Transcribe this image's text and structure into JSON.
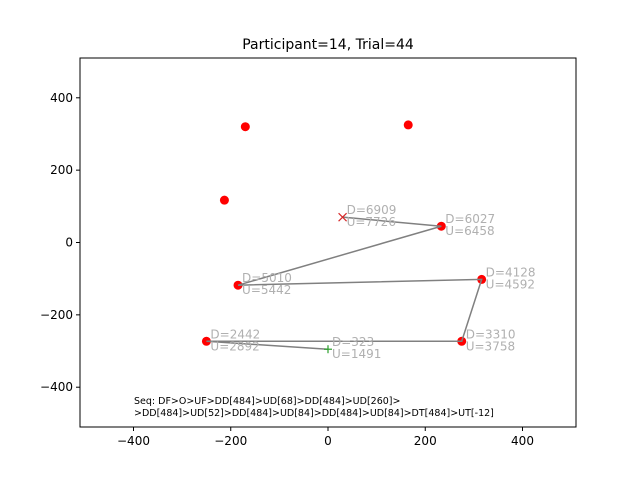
{
  "chart_data": {
    "type": "scatter",
    "title": "Participant=14, Trial=44",
    "xlabel": "",
    "ylabel": "",
    "xlim": [
      -510,
      510
    ],
    "ylim": [
      -510,
      510
    ],
    "xticks": [
      -400,
      -200,
      0,
      200,
      400
    ],
    "yticks": [
      -400,
      -200,
      0,
      200,
      400
    ],
    "xtick_labels": [
      "−400",
      "−200",
      "0",
      "200",
      "400"
    ],
    "ytick_labels": [
      "−400",
      "−200",
      "0",
      "200",
      "400"
    ],
    "grid": false,
    "colors": {
      "target": "#ff0000",
      "path": "#808080",
      "start_marker": "#2ca02c",
      "end_marker": "#d62728",
      "annotation": "#b0b0b0"
    },
    "targets": [
      {
        "x": -170,
        "y": 320
      },
      {
        "x": 165,
        "y": 325
      },
      {
        "x": -213,
        "y": 117
      },
      {
        "x": 233,
        "y": 45
      },
      {
        "x": -185,
        "y": -118
      },
      {
        "x": 316,
        "y": -102
      },
      {
        "x": -250,
        "y": -273
      },
      {
        "x": 275,
        "y": -273
      }
    ],
    "path": [
      {
        "x": 0,
        "y": -295
      },
      {
        "x": -250,
        "y": -273
      },
      {
        "x": 275,
        "y": -273
      },
      {
        "x": 316,
        "y": -102
      },
      {
        "x": -185,
        "y": -118
      },
      {
        "x": 233,
        "y": 45
      },
      {
        "x": 30,
        "y": 70
      }
    ],
    "start_marker": {
      "x": 0,
      "y": -295,
      "symbol": "+"
    },
    "end_marker": {
      "x": 30,
      "y": 70,
      "symbol": "x"
    },
    "annotations": [
      {
        "x": 0,
        "y": -295,
        "d": "D=323",
        "u": "U=1491"
      },
      {
        "x": -250,
        "y": -273,
        "d": "D=2442",
        "u": "U=2892"
      },
      {
        "x": 275,
        "y": -273,
        "d": "D=3310",
        "u": "U=3758"
      },
      {
        "x": 316,
        "y": -102,
        "d": "D=4128",
        "u": "U=4592"
      },
      {
        "x": -185,
        "y": -118,
        "d": "D=5010",
        "u": "U=5442"
      },
      {
        "x": 233,
        "y": 45,
        "d": "D=6027",
        "u": "U=6458"
      },
      {
        "x": 30,
        "y": 70,
        "d": "D=6909",
        "u": "U=7726"
      }
    ],
    "sequence_text": [
      "Seq: DF>O>UF>DD[484]>UD[68]>DD[484]>UD[260]>",
      ">DD[484]>UD[52]>DD[484]>UD[84]>DD[484]>UD[84]>DT[484]>UT[-12]"
    ]
  }
}
